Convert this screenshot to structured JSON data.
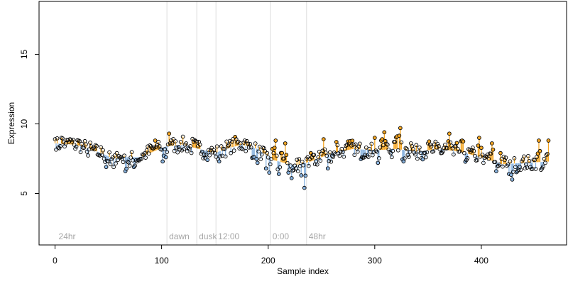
{
  "chart_data": {
    "type": "scatter",
    "xlabel": "Sample index",
    "ylabel": "Expression",
    "xlim": [
      -15,
      480
    ],
    "ylim": [
      1.3,
      18.8
    ],
    "x_ticks": [
      0,
      100,
      200,
      300,
      400
    ],
    "y_ticks": [
      5,
      10,
      15
    ],
    "grid": false,
    "vlines": [
      {
        "x": 105,
        "label": "dawn"
      },
      {
        "x": 133,
        "label": "dusk"
      },
      {
        "x": 151,
        "label": "12:00"
      },
      {
        "x": 202,
        "label": "0:00"
      },
      {
        "x": 236,
        "label": "48hr"
      }
    ],
    "corner_label": {
      "x": 2,
      "label": "24hr"
    },
    "baseline_trend": [
      [
        0,
        8.6
      ],
      [
        20,
        8.5
      ],
      [
        40,
        8.0
      ],
      [
        55,
        7.5
      ],
      [
        65,
        7.6
      ],
      [
        80,
        7.6
      ],
      [
        95,
        8.1
      ],
      [
        105,
        8.4
      ],
      [
        120,
        8.5
      ],
      [
        135,
        8.2
      ],
      [
        150,
        7.9
      ],
      [
        160,
        8.2
      ],
      [
        175,
        8.5
      ],
      [
        190,
        8.2
      ],
      [
        205,
        7.4
      ],
      [
        225,
        7.0
      ],
      [
        240,
        7.3
      ],
      [
        260,
        7.9
      ],
      [
        280,
        8.2
      ],
      [
        300,
        8.1
      ],
      [
        320,
        8.2
      ],
      [
        340,
        8.0
      ],
      [
        360,
        8.2
      ],
      [
        380,
        8.0
      ],
      [
        400,
        7.6
      ],
      [
        420,
        7.1
      ],
      [
        440,
        7.2
      ],
      [
        465,
        7.3
      ]
    ],
    "series": [
      {
        "color_up": "#f5a623",
        "color_down": "#8ab4e0",
        "noise": 0.55,
        "points": [
          [
            0,
            8.9
          ],
          [
            3,
            8.3
          ],
          [
            6,
            9.0
          ],
          [
            10,
            8.6
          ],
          [
            14,
            8.9
          ],
          [
            18,
            8.5
          ],
          [
            22,
            8.8
          ],
          [
            26,
            8.3
          ],
          [
            30,
            8.0
          ],
          [
            35,
            8.2
          ],
          [
            40,
            7.8
          ],
          [
            45,
            8.1
          ],
          [
            48,
            6.9
          ],
          [
            52,
            7.1
          ],
          [
            55,
            6.9
          ],
          [
            58,
            7.9
          ],
          [
            62,
            7.6
          ],
          [
            66,
            6.6
          ],
          [
            70,
            7.0
          ],
          [
            74,
            6.9
          ],
          [
            78,
            7.4
          ],
          [
            82,
            7.8
          ],
          [
            86,
            8.1
          ],
          [
            90,
            8.4
          ],
          [
            94,
            8.8
          ],
          [
            98,
            8.4
          ],
          [
            101,
            7.3
          ],
          [
            104,
            7.6
          ],
          [
            107,
            9.3
          ],
          [
            110,
            8.6
          ],
          [
            114,
            8.3
          ],
          [
            118,
            8.7
          ],
          [
            122,
            8.5
          ],
          [
            126,
            8.2
          ],
          [
            130,
            8.7
          ],
          [
            134,
            8.4
          ],
          [
            138,
            8.0
          ],
          [
            142,
            7.8
          ],
          [
            146,
            8.1
          ],
          [
            150,
            7.9
          ],
          [
            154,
            7.3
          ],
          [
            158,
            8.2
          ],
          [
            162,
            8.4
          ],
          [
            166,
            8.7
          ],
          [
            170,
            8.9
          ],
          [
            174,
            8.6
          ],
          [
            178,
            8.8
          ],
          [
            182,
            8.3
          ],
          [
            186,
            7.6
          ],
          [
            190,
            7.2
          ],
          [
            194,
            7.8
          ],
          [
            198,
            6.8
          ],
          [
            201,
            6.5
          ],
          [
            204,
            8.2
          ],
          [
            207,
            8.8
          ],
          [
            210,
            6.4
          ],
          [
            213,
            7.9
          ],
          [
            216,
            8.6
          ],
          [
            219,
            6.5
          ],
          [
            222,
            6.1
          ],
          [
            225,
            7.0
          ],
          [
            228,
            6.6
          ],
          [
            231,
            6.3
          ],
          [
            234,
            5.4
          ],
          [
            237,
            7.6
          ],
          [
            240,
            7.9
          ],
          [
            244,
            7.1
          ],
          [
            248,
            8.0
          ],
          [
            252,
            8.9
          ],
          [
            256,
            6.8
          ],
          [
            260,
            7.7
          ],
          [
            264,
            8.7
          ],
          [
            268,
            8.0
          ],
          [
            272,
            8.2
          ],
          [
            276,
            8.6
          ],
          [
            280,
            8.5
          ],
          [
            284,
            8.0
          ],
          [
            288,
            7.6
          ],
          [
            292,
            8.3
          ],
          [
            296,
            8.0
          ],
          [
            300,
            9.0
          ],
          [
            303,
            7.2
          ],
          [
            306,
            8.8
          ],
          [
            309,
            9.4
          ],
          [
            312,
            8.5
          ],
          [
            315,
            7.9
          ],
          [
            318,
            8.7
          ],
          [
            321,
            9.1
          ],
          [
            324,
            9.7
          ],
          [
            327,
            7.3
          ],
          [
            330,
            8.2
          ],
          [
            334,
            8.6
          ],
          [
            338,
            7.8
          ],
          [
            342,
            8.3
          ],
          [
            346,
            7.9
          ],
          [
            350,
            8.6
          ],
          [
            354,
            8.0
          ],
          [
            358,
            8.3
          ],
          [
            362,
            7.9
          ],
          [
            366,
            8.5
          ],
          [
            370,
            9.3
          ],
          [
            374,
            7.8
          ],
          [
            378,
            8.2
          ],
          [
            382,
            8.8
          ],
          [
            386,
            7.4
          ],
          [
            390,
            8.0
          ],
          [
            394,
            7.7
          ],
          [
            398,
            9.0
          ],
          [
            402,
            7.2
          ],
          [
            406,
            7.8
          ],
          [
            410,
            8.6
          ],
          [
            414,
            6.6
          ],
          [
            418,
            7.9
          ],
          [
            422,
            7.4
          ],
          [
            426,
            6.4
          ],
          [
            429,
            6.0
          ],
          [
            432,
            6.9
          ],
          [
            435,
            6.7
          ],
          [
            438,
            7.3
          ],
          [
            442,
            7.1
          ],
          [
            446,
            6.9
          ],
          [
            450,
            7.4
          ],
          [
            454,
            8.8
          ],
          [
            457,
            6.8
          ],
          [
            460,
            7.2
          ],
          [
            463,
            8.8
          ]
        ]
      }
    ]
  }
}
